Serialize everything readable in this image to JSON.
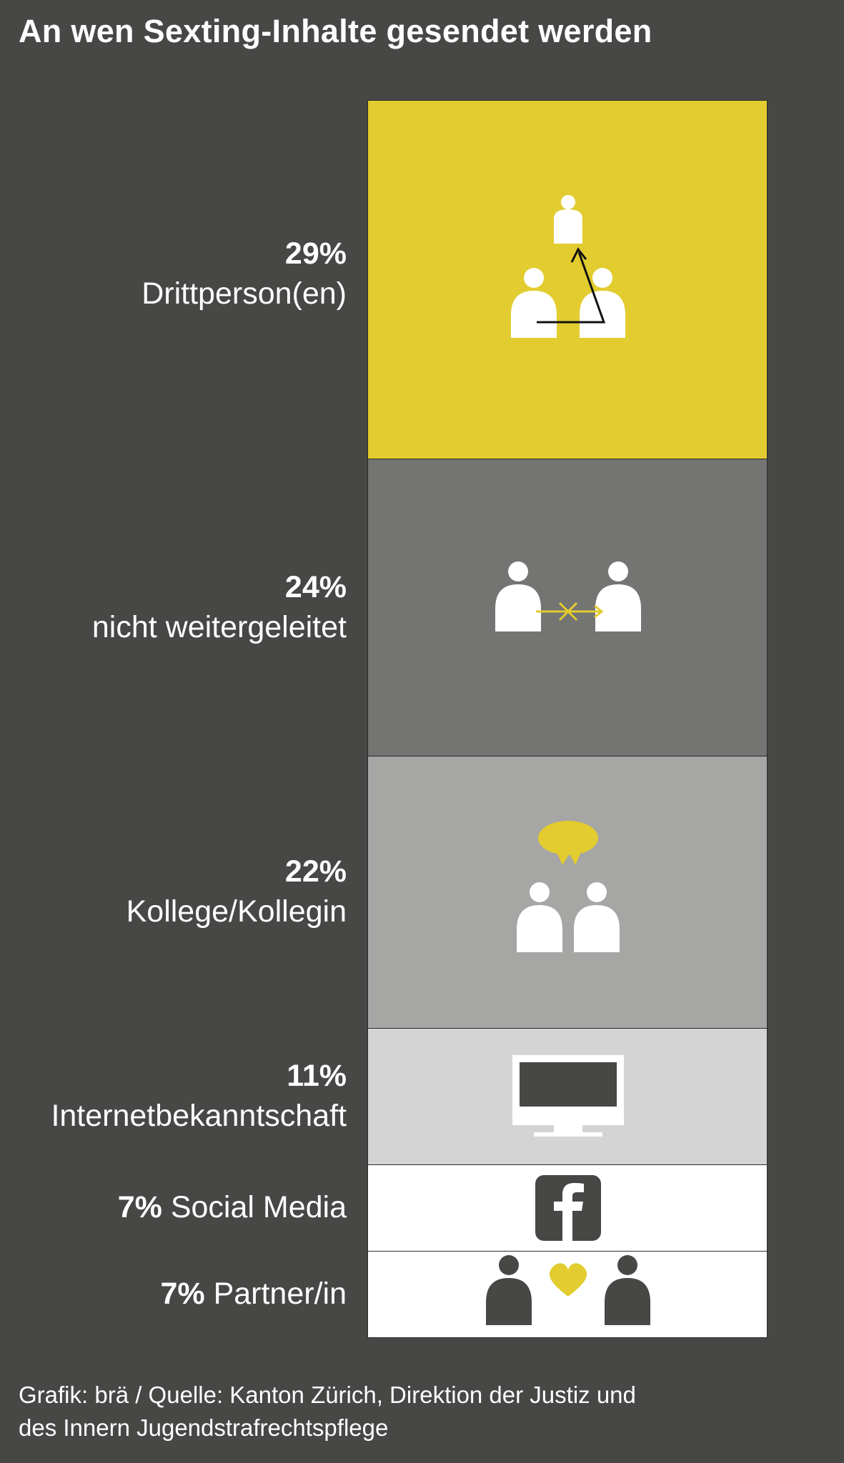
{
  "title": "An wen Sexting-Inhalte gesendet werden",
  "footer": {
    "line1": "Grafik: brä / Quelle: Kanton Zürich, Direktion der Justiz und",
    "line2": "des Innern Jugendstrafrechtspflege"
  },
  "colors": {
    "background": "#474746",
    "accent": "#e2cc2f"
  },
  "chart_data": {
    "type": "bar",
    "orientation": "stacked-column",
    "categories": [
      "Drittperson(en)",
      "nicht weitergeleitet",
      "Kollege/Kollegin",
      "Internetbekanntschaft",
      "Social Media",
      "Partner/in"
    ],
    "values": [
      29,
      24,
      22,
      11,
      7,
      7
    ],
    "value_labels": [
      "29%",
      "24%",
      "22%",
      "11%",
      "7%",
      "7%"
    ],
    "segment_colors": [
      "#e2cc2f",
      "#747473",
      "#a6a6a5",
      "#d4d4d4",
      "#ffffff",
      "#ffffff"
    ],
    "icons": [
      "forward-to-third-person-icon",
      "not-forwarded-icon",
      "colleagues-talking-icon",
      "computer-monitor-icon",
      "facebook-icon",
      "partners-heart-icon"
    ]
  }
}
